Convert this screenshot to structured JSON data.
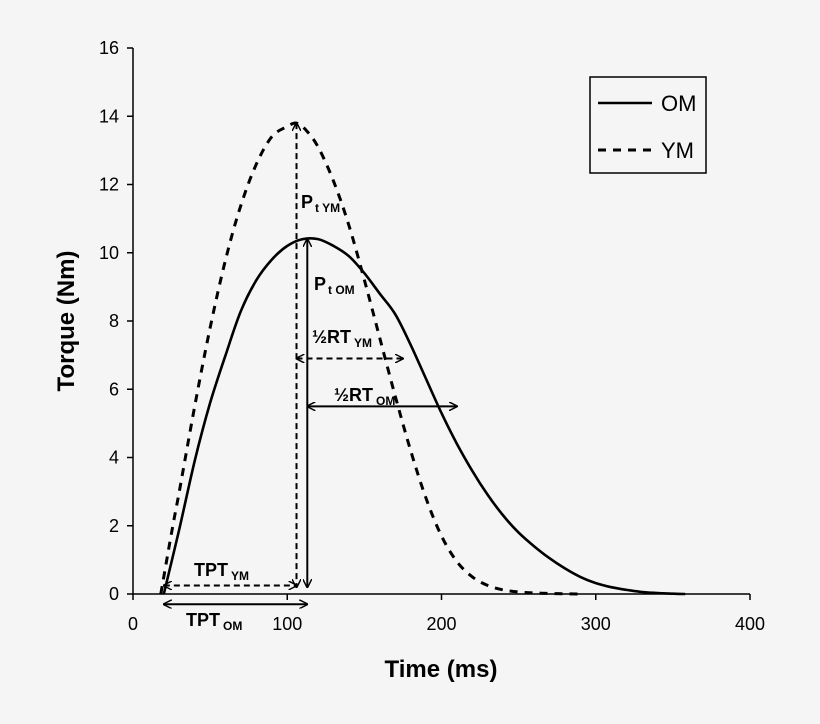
{
  "chart_data": {
    "type": "line",
    "title": "",
    "xlabel": "Time (ms)",
    "ylabel": "Torque (Nm)",
    "xlim": [
      0,
      400
    ],
    "ylim": [
      0,
      16
    ],
    "xticks": [
      "0",
      "100",
      "200",
      "300",
      "400"
    ],
    "yticks": [
      "0",
      "2",
      "4",
      "6",
      "8",
      "10",
      "12",
      "14",
      "16"
    ],
    "grid": false,
    "legend_position": "top-right",
    "series": [
      {
        "name": "OM",
        "style": "solid",
        "x": [
          20,
          30,
          40,
          50,
          60,
          70,
          80,
          90,
          100,
          110,
          120,
          130,
          140,
          150,
          160,
          170,
          180,
          190,
          200,
          210,
          220,
          230,
          240,
          250,
          260,
          270,
          280,
          290,
          300,
          310,
          320,
          330,
          340,
          350,
          358
        ],
        "y": [
          0,
          1.9,
          3.9,
          5.6,
          7.0,
          8.3,
          9.2,
          9.8,
          10.2,
          10.4,
          10.4,
          10.2,
          9.9,
          9.4,
          8.8,
          8.2,
          7.3,
          6.3,
          5.3,
          4.4,
          3.6,
          2.9,
          2.3,
          1.8,
          1.4,
          1.05,
          0.75,
          0.5,
          0.32,
          0.2,
          0.12,
          0.06,
          0.03,
          0.01,
          0
        ]
      },
      {
        "name": "YM",
        "style": "dashed",
        "x": [
          18,
          25,
          30,
          40,
          50,
          60,
          70,
          80,
          90,
          100,
          106,
          112,
          120,
          130,
          140,
          150,
          160,
          170,
          180,
          190,
          200,
          210,
          220,
          230,
          240,
          250,
          260,
          270,
          280,
          290
        ],
        "y": [
          0,
          1.8,
          3.0,
          5.5,
          7.8,
          9.8,
          11.4,
          12.6,
          13.4,
          13.7,
          13.8,
          13.6,
          13.1,
          12.1,
          10.8,
          9.2,
          7.5,
          5.8,
          4.2,
          2.8,
          1.7,
          0.95,
          0.5,
          0.25,
          0.12,
          0.06,
          0.03,
          0.015,
          0.005,
          0
        ]
      }
    ],
    "annotations": {
      "pt_ym": {
        "main": "P",
        "sub": "t YM",
        "x": 106,
        "y_from": 0.2,
        "y_to": 13.8
      },
      "pt_om": {
        "main": "P",
        "sub": "t OM",
        "x": 113,
        "y_from": 0.2,
        "y_to": 10.4
      },
      "half_rt_ym": {
        "main": "½RT",
        "sub": "YM",
        "x_from": 106,
        "x_to": 175,
        "y": 6.9
      },
      "half_rt_om": {
        "main": "½RT",
        "sub": "OM",
        "x_from": 113,
        "x_to": 210,
        "y": 5.5
      },
      "tpt_ym": {
        "main": "TPT",
        "sub": "YM",
        "x_from": 20,
        "x_to": 106,
        "y": 0.25
      },
      "tpt_om": {
        "main": "TPT",
        "sub": "OM",
        "x_from": 20,
        "x_to": 113,
        "y": -0.3
      }
    }
  }
}
